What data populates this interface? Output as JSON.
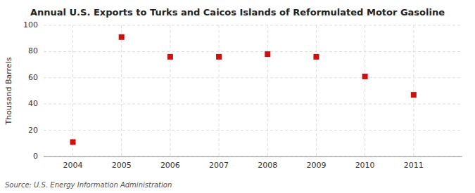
{
  "chart_data": {
    "type": "scatter",
    "title": "Annual U.S. Exports to Turks and Caicos Islands of Reformulated Motor Gasoline",
    "ylabel": "Thousand Barrels",
    "source": "Source: U.S. Energy Information Administration",
    "x": [
      2004,
      2005,
      2006,
      2007,
      2008,
      2009,
      2010,
      2011
    ],
    "values": [
      11,
      91,
      76,
      76,
      78,
      76,
      61,
      47
    ],
    "color": "#cc1111",
    "marker": "square",
    "xlim": [
      2003.4,
      2012.0
    ],
    "ylim": [
      0,
      100
    ],
    "xticks": [
      2004,
      2005,
      2006,
      2007,
      2008,
      2009,
      2010,
      2011
    ],
    "yticks": [
      0,
      20,
      40,
      60,
      80,
      100
    ],
    "grid": true
  }
}
